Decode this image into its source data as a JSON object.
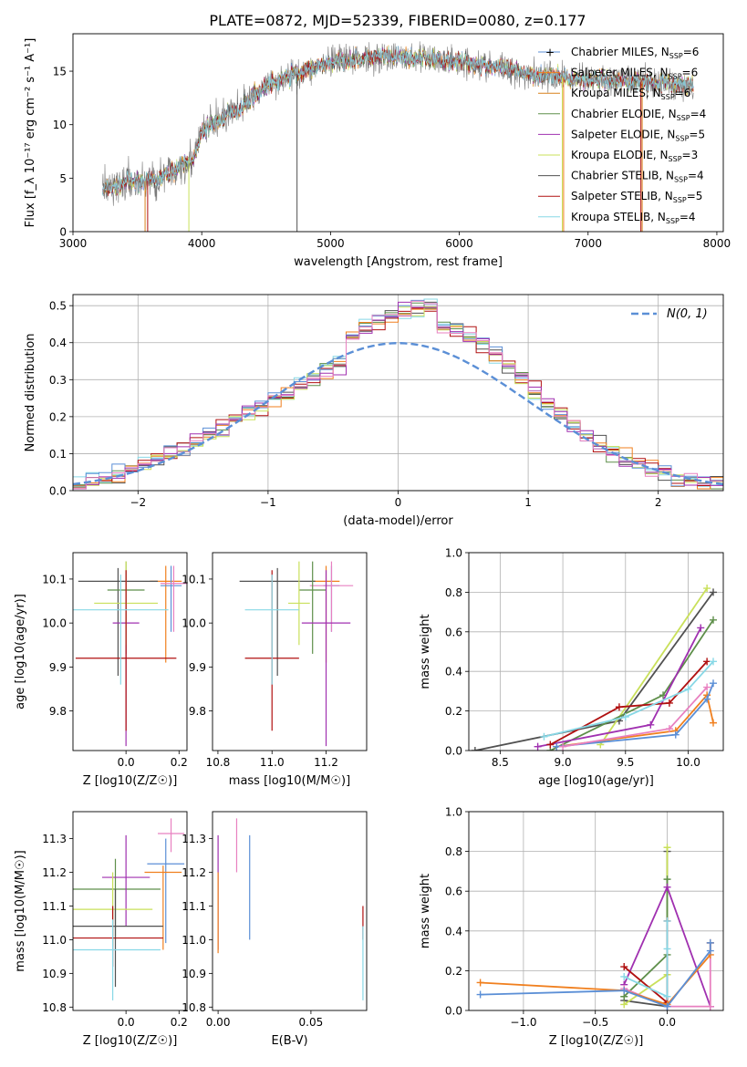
{
  "figure": {
    "title": "PLATE=0872, MJD=52339, FIBERID=0080, z=0.177"
  },
  "colors": {
    "c0": "#5b8fd6",
    "c1": "#f07f1e",
    "c2": "#d9801a",
    "c3": "#5e8f4a",
    "c4": "#a030b0",
    "c5": "#c9e05a",
    "c6": "#505050",
    "c7": "#b01010",
    "c8": "#88d8e6",
    "c9": "#e880c0",
    "grey": "#7a7a7a"
  },
  "chart_data": [
    {
      "id": "spectrum",
      "type": "line",
      "xlabel": "wavelength [Angstrom, rest frame]",
      "ylabel": "Flux [f_λ 10⁻¹⁷ erg cm⁻² s⁻¹ A⁻¹]",
      "xlim": [
        3000,
        8050
      ],
      "ylim": [
        0,
        18.5
      ],
      "xticks": [
        3000,
        4000,
        5000,
        6000,
        7000,
        8000
      ],
      "yticks": [
        0,
        5,
        10,
        15
      ],
      "continuum": {
        "x": [
          3230,
          3400,
          3500,
          3650,
          3750,
          3850,
          3950,
          4000,
          4100,
          4200,
          4300,
          4400,
          4500,
          4600,
          4700,
          4800,
          4900,
          5000,
          5100,
          5300,
          5500,
          5700,
          5900,
          6100,
          6300,
          6500,
          6700,
          6900,
          7100,
          7300,
          7500,
          7700,
          7820
        ],
        "y": [
          3.8,
          4.6,
          4.7,
          4.8,
          5.5,
          6.3,
          7.0,
          9.3,
          10.2,
          10.9,
          11.6,
          12.7,
          13.6,
          14.2,
          14.6,
          15.0,
          15.4,
          15.8,
          16.0,
          16.3,
          16.3,
          16.2,
          16.0,
          15.8,
          15.3,
          14.9,
          14.5,
          14.3,
          14.2,
          14.1,
          14.0,
          13.7,
          13.6
        ]
      },
      "legend": [
        {
          "label": "Chabrier MILES, N",
          "sub": "SSP",
          "tail": "=6",
          "color": "c0"
        },
        {
          "label": "Salpeter MILES, N",
          "sub": "SSP",
          "tail": "=6",
          "color": "c1"
        },
        {
          "label": "Kroupa MILES, N",
          "sub": "SSP",
          "tail": "=6",
          "color": "c2"
        },
        {
          "label": "Chabrier ELODIE, N",
          "sub": "SSP",
          "tail": "=4",
          "color": "c3"
        },
        {
          "label": "Salpeter ELODIE, N",
          "sub": "SSP",
          "tail": "=5",
          "color": "c4"
        },
        {
          "label": "Kroupa ELODIE, N",
          "sub": "SSP",
          "tail": "=3",
          "color": "c5"
        },
        {
          "label": "Chabrier STELIB, N",
          "sub": "SSP",
          "tail": "=4",
          "color": "c6"
        },
        {
          "label": "Salpeter STELIB, N",
          "sub": "SSP",
          "tail": "=5",
          "color": "c7"
        },
        {
          "label": "Kroupa STELIB, N",
          "sub": "SSP",
          "tail": "=4",
          "color": "c8"
        }
      ]
    },
    {
      "id": "residuals",
      "type": "histogram",
      "xlabel": "(data-model)/error",
      "ylabel": "Normed distribution",
      "xlim": [
        -2.5,
        2.5
      ],
      "ylim": [
        0,
        0.53
      ],
      "xticks": [
        -2,
        -1,
        0,
        1,
        2
      ],
      "yticks": [
        0.0,
        0.1,
        0.2,
        0.3,
        0.4,
        0.5
      ],
      "grid": true,
      "legend_label": "N(0, 1)",
      "bin_width": 0.1,
      "bin_start": -2.5,
      "gaussian_color": "c0"
    },
    {
      "id": "age-vs-Z",
      "type": "errorbar",
      "xlabel": "Z [log10(Z/Z☉)]",
      "ylabel": "age  [log10(age/yr)]",
      "xlim": [
        -0.2,
        0.23
      ],
      "ylim": [
        9.71,
        10.16
      ],
      "xticks": [
        -0.0,
        0.2
      ],
      "xticklabels": [
        "0.0",
        "0.2"
      ],
      "yticks": [
        9.8,
        9.9,
        10.0,
        10.1
      ],
      "points": [
        {
          "x": 0.15,
          "y": 10.095,
          "xerr": 0.06,
          "y0": 9.91,
          "y1": 10.13,
          "color": "c1"
        },
        {
          "x": 0.17,
          "y": 10.085,
          "xerr": 0.04,
          "y0": 9.98,
          "y1": 10.13,
          "color": "c0"
        },
        {
          "x": 0.18,
          "y": 10.09,
          "xerr": 0.05,
          "y0": 9.98,
          "y1": 10.13,
          "color": "c9"
        },
        {
          "x": -0.03,
          "y": 10.095,
          "xerr": 0.15,
          "y0": 9.88,
          "y1": 10.125,
          "color": "c6"
        },
        {
          "x": 0.0,
          "y": 10.075,
          "xerr": 0.07,
          "y0": 9.93,
          "y1": 10.14,
          "color": "c3"
        },
        {
          "x": 0.0,
          "y": 10.0,
          "xerr": 0.05,
          "y0": 9.72,
          "y1": 10.12,
          "color": "c4"
        },
        {
          "x": 0.0,
          "y": 10.045,
          "xerr": 0.12,
          "y0": 9.95,
          "y1": 10.14,
          "color": "c5"
        },
        {
          "x": 0.0,
          "y": 9.92,
          "xerr": 0.19,
          "y0": 9.755,
          "y1": 10.12,
          "color": "c7"
        },
        {
          "x": -0.02,
          "y": 10.03,
          "xerr": 0.18,
          "y0": 9.86,
          "y1": 10.11,
          "color": "c8"
        }
      ]
    },
    {
      "id": "age-vs-mass",
      "type": "errorbar",
      "xlabel": "mass [log10(M/M☉)]",
      "ylabel": "",
      "xlim": [
        10.78,
        11.35
      ],
      "ylim": [
        9.71,
        10.16
      ],
      "xticks": [
        10.8,
        11.0,
        11.2
      ],
      "yticks": [
        9.8,
        9.9,
        10.0,
        10.1
      ],
      "points": [
        {
          "x": 11.2,
          "y": 10.095,
          "xerr": 0.05,
          "y0": 9.91,
          "y1": 10.13,
          "color": "c1"
        },
        {
          "x": 11.22,
          "y": 10.085,
          "xerr": 0.03,
          "y0": 9.98,
          "y1": 10.13,
          "color": "c0"
        },
        {
          "x": 11.22,
          "y": 10.085,
          "xerr": 0.08,
          "y0": 9.98,
          "y1": 10.14,
          "color": "c9"
        },
        {
          "x": 11.02,
          "y": 10.095,
          "xerr": 0.14,
          "y0": 9.88,
          "y1": 10.125,
          "color": "c6"
        },
        {
          "x": 11.15,
          "y": 10.075,
          "xerr": 0.05,
          "y0": 9.93,
          "y1": 10.14,
          "color": "c3"
        },
        {
          "x": 11.2,
          "y": 10.0,
          "xerr": 0.09,
          "y0": 9.72,
          "y1": 10.12,
          "color": "c4"
        },
        {
          "x": 11.1,
          "y": 10.045,
          "xerr": 0.04,
          "y0": 9.95,
          "y1": 10.14,
          "color": "c5"
        },
        {
          "x": 11.0,
          "y": 9.92,
          "xerr": 0.1,
          "y0": 9.755,
          "y1": 10.12,
          "color": "c7"
        },
        {
          "x": 11.0,
          "y": 10.03,
          "xerr": 0.1,
          "y0": 9.86,
          "y1": 10.11,
          "color": "c8"
        }
      ]
    },
    {
      "id": "weight-vs-age",
      "type": "line",
      "xlabel": "age  [log10(age/yr)]",
      "ylabel": "mass weight",
      "xlim": [
        8.25,
        10.28
      ],
      "ylim": [
        0,
        1.0
      ],
      "xticks": [
        8.5,
        9.0,
        9.5,
        10.0
      ],
      "yticks": [
        0.0,
        0.2,
        0.4,
        0.6,
        0.8,
        1.0
      ],
      "grid": true,
      "series": [
        {
          "color": "c6",
          "x": [
            8.3,
            9.45,
            10.2
          ],
          "y": [
            0.0,
            0.15,
            0.8
          ]
        },
        {
          "color": "c5",
          "x": [
            9.3,
            10.15
          ],
          "y": [
            0.03,
            0.82
          ]
        },
        {
          "color": "c3",
          "x": [
            8.9,
            9.8,
            10.2
          ],
          "y": [
            0.0,
            0.28,
            0.66
          ]
        },
        {
          "color": "c4",
          "x": [
            8.8,
            9.7,
            10.1
          ],
          "y": [
            0.02,
            0.13,
            0.62
          ]
        },
        {
          "color": "c7",
          "x": [
            8.9,
            9.45,
            9.85,
            10.15
          ],
          "y": [
            0.03,
            0.22,
            0.24,
            0.45
          ]
        },
        {
          "color": "c8",
          "x": [
            8.85,
            9.5,
            10.0,
            10.2
          ],
          "y": [
            0.07,
            0.17,
            0.31,
            0.45
          ]
        },
        {
          "color": "c1",
          "x": [
            8.95,
            9.9,
            10.15,
            10.2
          ],
          "y": [
            0.02,
            0.1,
            0.28,
            0.14
          ]
        },
        {
          "color": "c0",
          "x": [
            8.95,
            9.9,
            10.15,
            10.2
          ],
          "y": [
            0.02,
            0.08,
            0.26,
            0.34
          ]
        },
        {
          "color": "c9",
          "x": [
            9.0,
            9.85,
            10.15
          ],
          "y": [
            0.02,
            0.11,
            0.32
          ]
        }
      ]
    },
    {
      "id": "mass-vs-Z",
      "type": "errorbar",
      "xlabel": "Z [log10(Z/Z☉)]",
      "ylabel": "mass [log10(M/M☉)]",
      "xlim": [
        -0.2,
        0.23
      ],
      "ylim": [
        10.79,
        11.38
      ],
      "xticks": [
        -0.0,
        0.2
      ],
      "xticklabels": [
        "0.0",
        "0.2"
      ],
      "yticks": [
        10.8,
        10.9,
        11.0,
        11.1,
        11.2,
        11.3
      ],
      "points": [
        {
          "x": 0.17,
          "y": 11.315,
          "xerr": 0.05,
          "y0": 11.26,
          "y1": 11.36,
          "color": "c9"
        },
        {
          "x": 0.15,
          "y": 11.225,
          "xerr": 0.07,
          "y0": 10.99,
          "y1": 11.3,
          "color": "c0"
        },
        {
          "x": 0.14,
          "y": 11.2,
          "xerr": 0.07,
          "y0": 10.97,
          "y1": 11.22,
          "color": "c1"
        },
        {
          "x": -0.04,
          "y": 11.15,
          "xerr": 0.17,
          "y0": 11.0,
          "y1": 11.24,
          "color": "c3"
        },
        {
          "x": 0.0,
          "y": 11.185,
          "xerr": 0.09,
          "y0": 11.04,
          "y1": 11.31,
          "color": "c4"
        },
        {
          "x": -0.05,
          "y": 11.09,
          "xerr": 0.15,
          "y0": 10.98,
          "y1": 11.2,
          "color": "c5"
        },
        {
          "x": -0.04,
          "y": 11.04,
          "xerr": 0.18,
          "y0": 10.86,
          "y1": 11.15,
          "color": "c6"
        },
        {
          "x": -0.05,
          "y": 11.005,
          "xerr": 0.19,
          "y0": 10.92,
          "y1": 11.1,
          "color": "c7"
        },
        {
          "x": -0.05,
          "y": 10.97,
          "xerr": 0.18,
          "y0": 10.82,
          "y1": 11.06,
          "color": "c8"
        }
      ]
    },
    {
      "id": "mass-vs-EBV",
      "type": "errorbar",
      "xlabel": "E(B-V)",
      "ylabel": "",
      "xlim": [
        -0.003,
        0.08
      ],
      "ylim": [
        10.79,
        11.38
      ],
      "xticks": [
        0.0,
        0.05
      ],
      "xticklabels": [
        "0.00",
        "0.05"
      ],
      "yticks": [
        10.8,
        10.9,
        11.0,
        11.1,
        11.2,
        11.3
      ],
      "points": [
        {
          "x": 0.0,
          "y": 11.1,
          "xerr": 0,
          "y0": 10.97,
          "y1": 11.31,
          "color": "c4"
        },
        {
          "x": 0.0,
          "y": 11.05,
          "xerr": 0,
          "y0": 10.96,
          "y1": 11.2,
          "color": "c1"
        },
        {
          "x": 0.01,
          "y": 11.3,
          "xerr": 0,
          "y0": 11.2,
          "y1": 11.36,
          "color": "c9"
        },
        {
          "x": 0.017,
          "y": 11.15,
          "xerr": 0,
          "y0": 11.0,
          "y1": 11.31,
          "color": "c0"
        },
        {
          "x": 0.078,
          "y": 11.05,
          "xerr": 0,
          "y0": 11.0,
          "y1": 11.1,
          "color": "c7"
        },
        {
          "x": 0.078,
          "y": 10.95,
          "xerr": 0,
          "y0": 10.82,
          "y1": 11.04,
          "color": "c8"
        }
      ]
    },
    {
      "id": "weight-vs-Z",
      "type": "line",
      "xlabel": "Z [log10(Z/Z☉)]",
      "ylabel": "mass weight",
      "xlim": [
        -1.38,
        0.39
      ],
      "ylim": [
        0,
        1.0
      ],
      "xticks": [
        -1.0,
        -0.5,
        0.0
      ],
      "yticks": [
        0.0,
        0.2,
        0.4,
        0.6,
        0.8,
        1.0
      ],
      "grid": true,
      "series": [
        {
          "color": "c6",
          "x": [
            -0.3,
            0.0,
            0.0
          ],
          "y": [
            0.05,
            0.02,
            0.8
          ]
        },
        {
          "color": "c5",
          "x": [
            -0.3,
            0.0,
            0.0
          ],
          "y": [
            0.03,
            0.18,
            0.82
          ]
        },
        {
          "color": "c3",
          "x": [
            -0.3,
            0.0,
            0.0
          ],
          "y": [
            0.07,
            0.28,
            0.66
          ]
        },
        {
          "color": "c4",
          "x": [
            -0.3,
            0.0,
            0.3,
            0.3
          ],
          "y": [
            0.13,
            0.62,
            0.02,
            0.02
          ]
        },
        {
          "color": "c7",
          "x": [
            -0.3,
            0.0,
            0.0
          ],
          "y": [
            0.22,
            0.04,
            0.45
          ]
        },
        {
          "color": "c8",
          "x": [
            -0.3,
            0.0,
            0.0,
            0.0
          ],
          "y": [
            0.17,
            0.07,
            0.31,
            0.45
          ]
        },
        {
          "color": "c9",
          "x": [
            -0.3,
            0.0,
            0.3,
            0.3
          ],
          "y": [
            0.11,
            0.02,
            0.02,
            0.34
          ]
        },
        {
          "color": "c1",
          "x": [
            -1.3,
            -0.3,
            0.0,
            0.3,
            0.3
          ],
          "y": [
            0.14,
            0.1,
            0.03,
            0.28,
            0.34
          ]
        },
        {
          "color": "c0",
          "x": [
            -1.3,
            -0.3,
            0.0,
            0.3,
            0.3
          ],
          "y": [
            0.08,
            0.1,
            0.02,
            0.3,
            0.34
          ]
        }
      ]
    }
  ]
}
